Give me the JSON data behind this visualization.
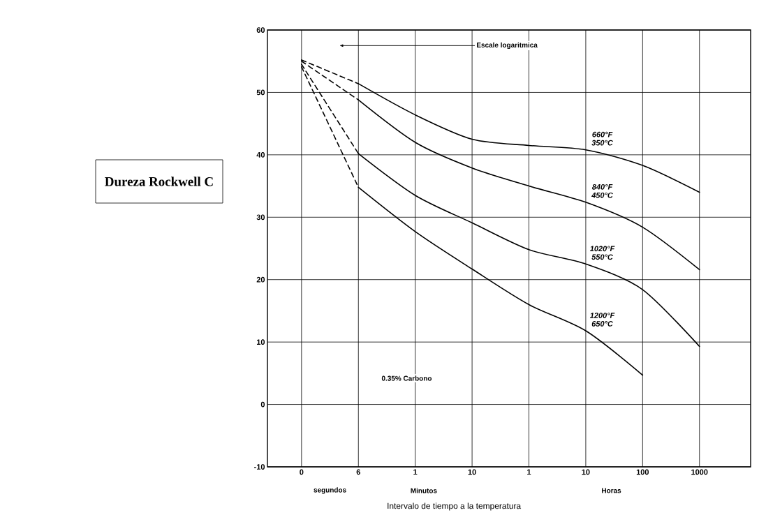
{
  "chart_data": {
    "type": "line",
    "xlabel": "Intervalo de tiempo a la temperatura",
    "ylabel": "Dureza Rockwell C",
    "categories": [
      "0",
      "6",
      "1",
      "10",
      "1",
      "10",
      "100",
      "1000"
    ],
    "ylim": [
      -10,
      60
    ],
    "yticks": [
      -10,
      0,
      10,
      20,
      30,
      40,
      50,
      60
    ],
    "grid": true,
    "series": [
      {
        "color": "#000000",
        "line_style": "dashed",
        "values": [
          55.2,
          51.4,
          null,
          null,
          null,
          null,
          null,
          null
        ]
      },
      {
        "name": "660°F 350°C",
        "color": "#000000",
        "line_style": "solid",
        "values": [
          null,
          51.4,
          46.4,
          42.5,
          41.5,
          40.8,
          38.3,
          34.0
        ]
      },
      {
        "color": "#000000",
        "line_style": "dashed",
        "values": [
          55.0,
          48.8,
          null,
          null,
          null,
          null,
          null,
          null
        ]
      },
      {
        "name": "840°F 450°C",
        "color": "#000000",
        "line_style": "solid",
        "values": [
          null,
          48.8,
          42.0,
          37.9,
          35.0,
          32.4,
          28.4,
          21.6
        ]
      },
      {
        "color": "#000000",
        "line_style": "dashed",
        "values": [
          54.5,
          40.2,
          null,
          null,
          null,
          null,
          null,
          null
        ]
      },
      {
        "name": "1020°F 550°C",
        "color": "#000000",
        "line_style": "solid",
        "values": [
          null,
          40.2,
          33.5,
          29.1,
          24.8,
          22.5,
          18.4,
          9.3
        ]
      },
      {
        "color": "#000000",
        "line_style": "dashed",
        "values": [
          54.1,
          34.8,
          null,
          null,
          null,
          null,
          null,
          null
        ]
      },
      {
        "name": "1200°F 650°C",
        "color": "#000000",
        "line_style": "solid",
        "values": [
          null,
          34.8,
          27.7,
          21.7,
          16.0,
          11.8,
          4.7,
          null
        ]
      }
    ],
    "annotations": [
      "0.35% Carbono",
      "segundos",
      "Minutos",
      "Horas",
      "Escale logaritmica"
    ]
  }
}
